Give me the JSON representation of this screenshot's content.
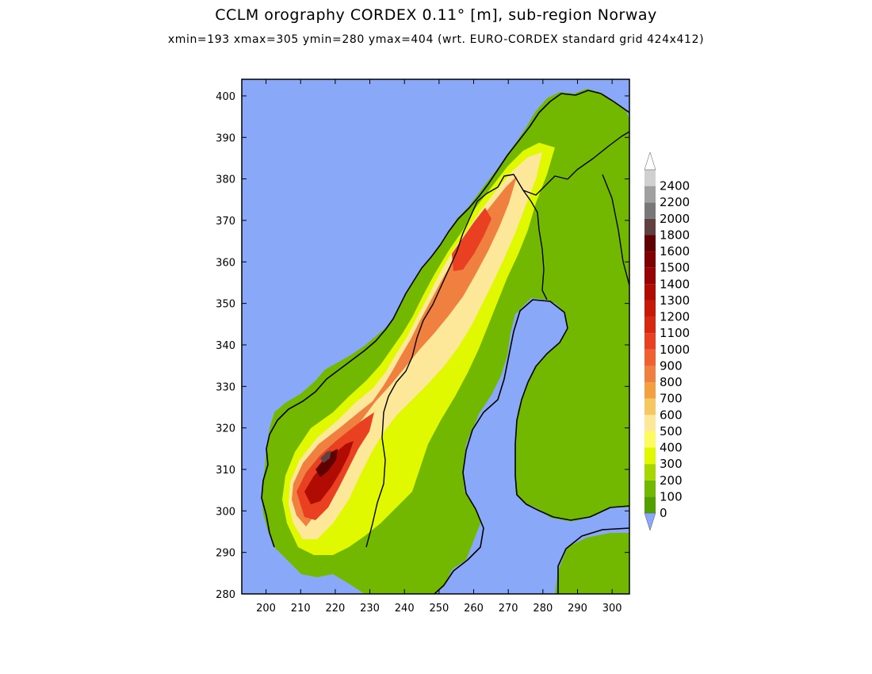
{
  "title": "CCLM orography CORDEX 0.11° [m], sub-region Norway",
  "subtitle": "xmin=193 xmax=305 ymin=280 ymax=404 (wrt. EURO-CORDEX standard grid 424x412)",
  "map": {
    "xlim": [
      193,
      305
    ],
    "ylim": [
      280,
      404
    ],
    "x_ticks": [
      200,
      210,
      220,
      230,
      240,
      250,
      260,
      270,
      280,
      290,
      300
    ],
    "y_ticks": [
      280,
      290,
      300,
      310,
      320,
      330,
      340,
      350,
      360,
      370,
      380,
      390,
      400
    ],
    "ocean_color": "#8aa8f8",
    "coastline_color": "#000000"
  },
  "colorbar": {
    "levels": [
      0,
      100,
      200,
      300,
      400,
      500,
      600,
      700,
      800,
      900,
      1000,
      1100,
      1200,
      1300,
      1400,
      1500,
      1600,
      1800,
      2000,
      2200,
      2400
    ],
    "labels": [
      "0",
      "100",
      "200",
      "300",
      "400",
      "500",
      "600",
      "700",
      "800",
      "900",
      "1000",
      "1100",
      "1200",
      "1300",
      "1400",
      "1500",
      "1600",
      "1800",
      "2000",
      "2200",
      "2400"
    ],
    "colors": [
      "#52a000",
      "#72b800",
      "#a6d800",
      "#e0f800",
      "#fcfc60",
      "#fce898",
      "#f8c860",
      "#f4a040",
      "#f08040",
      "#f06030",
      "#e84020",
      "#d82810",
      "#c81808",
      "#b00c04",
      "#980404",
      "#800000",
      "#600000",
      "#604040",
      "#787878",
      "#a0a0a0",
      "#d0d0d0"
    ],
    "under_color": "#8aa8f8",
    "over_color": "#ffffff"
  }
}
